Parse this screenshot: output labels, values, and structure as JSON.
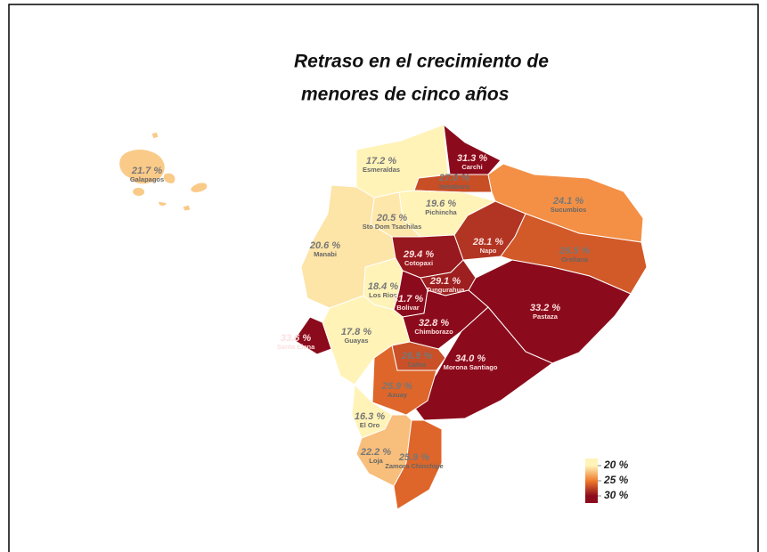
{
  "title": [
    "Retraso en el crecimiento de",
    "menores de cinco años"
  ],
  "regions": [
    {
      "name": "Galapagos",
      "value": 21.7,
      "label": "21.7 %"
    },
    {
      "name": "Esmeraldas",
      "value": 17.2,
      "label": "17.2 %"
    },
    {
      "name": "Carchi",
      "value": 31.3,
      "label": "31.3 %"
    },
    {
      "name": "Imbabura",
      "value": 27.0,
      "label": "27.0 %"
    },
    {
      "name": "Sucumbios",
      "value": 24.1,
      "label": "24.1 %"
    },
    {
      "name": "Pichincha",
      "value": 19.6,
      "label": "19.6 %"
    },
    {
      "name": "Sto Dom Tsachilas",
      "value": 20.5,
      "label": "20.5 %"
    },
    {
      "name": "Manabi",
      "value": 20.6,
      "label": "20.6 %"
    },
    {
      "name": "Napo",
      "value": 28.1,
      "label": "28.1 %"
    },
    {
      "name": "Orellana",
      "value": 26.5,
      "label": "26.5 %"
    },
    {
      "name": "Cotopaxi",
      "value": 29.4,
      "label": "29.4 %"
    },
    {
      "name": "Los Rios",
      "value": 18.4,
      "label": "18.4 %"
    },
    {
      "name": "Tungurahua",
      "value": 29.1,
      "label": "29.1 %"
    },
    {
      "name": "Pastaza",
      "value": 33.2,
      "label": "33.2 %"
    },
    {
      "name": "Bolivar",
      "value": 31.7,
      "label": "31.7 %"
    },
    {
      "name": "Chimborazo",
      "value": 32.8,
      "label": "32.8 %"
    },
    {
      "name": "Santa Elena",
      "value": 33.6,
      "label": "33.6 %"
    },
    {
      "name": "Guayas",
      "value": 17.8,
      "label": "17.8 %"
    },
    {
      "name": "Morona Santiago",
      "value": 34.0,
      "label": "34.0 %"
    },
    {
      "name": "Cañar",
      "value": 26.9,
      "label": "26.9 %"
    },
    {
      "name": "Azuay",
      "value": 25.9,
      "label": "25.9 %"
    },
    {
      "name": "El Oro",
      "value": 16.3,
      "label": "16.3 %"
    },
    {
      "name": "Loja",
      "value": 22.2,
      "label": "22.2 %"
    },
    {
      "name": "Zamora Chinchipe",
      "value": 25.9,
      "label": "25.9 %"
    }
  ],
  "legend": {
    "ticks": [
      {
        "value": 20,
        "label": "20 %"
      },
      {
        "value": 25,
        "label": "25 %"
      },
      {
        "value": 30,
        "label": "30 %"
      }
    ],
    "colors": [
      "#fff3b8",
      "#f07a2d",
      "#8b0b1c"
    ]
  }
}
